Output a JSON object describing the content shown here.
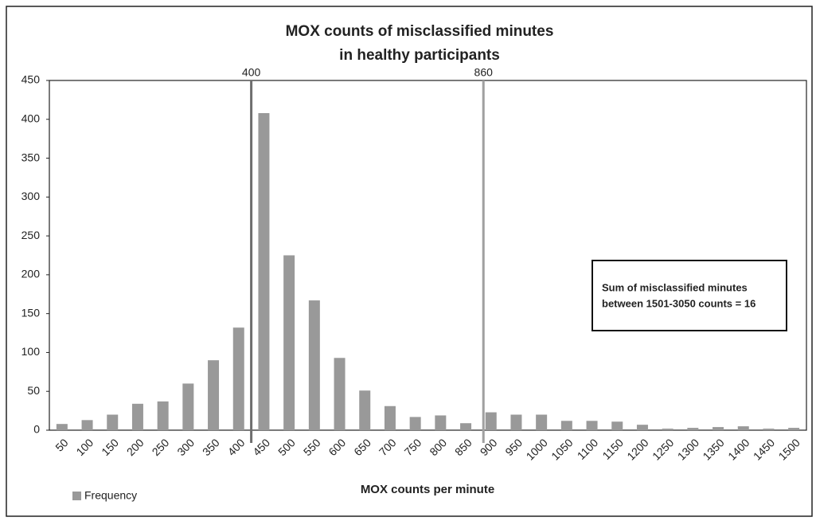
{
  "chart_data": {
    "type": "bar",
    "title": [
      "MOX counts of misclassified minutes",
      "in healthy participants"
    ],
    "categories": [
      50,
      100,
      150,
      200,
      250,
      300,
      350,
      400,
      450,
      500,
      550,
      600,
      650,
      700,
      750,
      800,
      850,
      900,
      950,
      1000,
      1050,
      1100,
      1150,
      1200,
      1250,
      1300,
      1350,
      1400,
      1450,
      1500
    ],
    "series": [
      {
        "name": "Frequency",
        "color": "#999999",
        "values": [
          8,
          13,
          20,
          34,
          37,
          60,
          90,
          132,
          408,
          225,
          167,
          93,
          51,
          31,
          17,
          19,
          9,
          23,
          20,
          20,
          12,
          12,
          11,
          7,
          2,
          3,
          4,
          5,
          2,
          3
        ]
      }
    ],
    "ylim": [
      0,
      450
    ],
    "yticks": [
      0,
      50,
      100,
      150,
      200,
      250,
      300,
      350,
      400,
      450
    ],
    "xlabel": "MOX counts per minute",
    "vlines": [
      400,
      860
    ],
    "vline_colors": [
      "#6e6e6e",
      "#a0a0a0"
    ],
    "annotation": [
      "Sum of misclassified minutes",
      "between 1501-3050 counts = 16"
    ]
  }
}
